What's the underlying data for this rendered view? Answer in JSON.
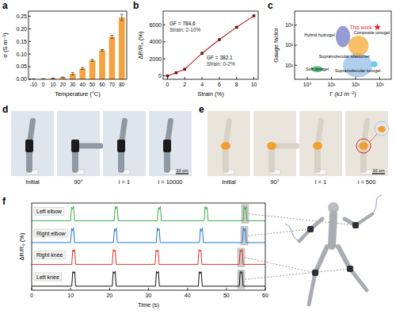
{
  "chart_data": [
    {
      "type": "bar",
      "title": "a",
      "x_label": "Temperature (°C)",
      "y_label": "σ (S m⁻¹)",
      "categories": [
        -10,
        0,
        10,
        20,
        30,
        40,
        50,
        60,
        70,
        80
      ],
      "values": [
        0.001,
        0.002,
        0.004,
        0.008,
        0.022,
        0.043,
        0.075,
        0.115,
        0.168,
        0.245
      ],
      "errors": [
        0.0005,
        0.0005,
        0.001,
        0.001,
        0.005,
        0.004,
        0.004,
        0.003,
        0.006,
        0.012
      ],
      "color": "#f3a440",
      "ylim": [
        0,
        0.27
      ],
      "yticks": [
        {
          "value": 0,
          "label": "0.00"
        },
        0.05,
        {
          "value": 0.1,
          "label": "0.10"
        },
        0.15,
        {
          "value": 0.2,
          "label": "0.20"
        },
        0.25
      ]
    },
    {
      "type": "line",
      "title": "b",
      "x_label": "Strain (%)",
      "y_label": "ΔR/R₀ (%)",
      "x": [
        0,
        1,
        2,
        4,
        6,
        8,
        10
      ],
      "values": [
        0,
        370,
        780,
        2650,
        4250,
        5700,
        7050
      ],
      "color": "#b22222",
      "marker": "square",
      "line_style": "solid",
      "xlim": [
        -0.5,
        10.5
      ],
      "xticks": [
        0,
        2,
        4,
        6,
        8,
        10
      ],
      "ylim": [
        -400,
        7600
      ],
      "yticks": [
        0,
        2000,
        4000,
        6000
      ],
      "annotations": [
        "GF = 382.1",
        "Strain: 0-2%",
        "GF = 784.6",
        "Strain: 2-10%"
      ]
    },
    {
      "type": "scatter",
      "title": "c",
      "x_label": "Γ (kJ m⁻²)",
      "y_label": "Gauge factor",
      "log": true,
      "xlim": [
        0.3,
        3000
      ],
      "xticks": [
        {
          "value": 1,
          "label": "10⁰"
        },
        {
          "value": 10,
          "label": "10¹"
        },
        {
          "value": 100,
          "label": "10²"
        },
        {
          "value": 1000,
          "label": "10³"
        }
      ],
      "ylim": [
        2,
        5000
      ],
      "yticks": [
        {
          "value": 10,
          "label": "10¹"
        },
        {
          "value": 100,
          "label": "10²"
        },
        {
          "value": 1000,
          "label": "10³"
        }
      ],
      "regions": [
        {
          "name": "Supramolecular ionogel",
          "color": "#9cc3ea",
          "x": [
            30,
            500
          ],
          "y": [
            2.5,
            40
          ]
        },
        {
          "name": "Composite ionogel",
          "color": "#f5b041",
          "x": [
            50,
            350
          ],
          "y": [
            30,
            300
          ]
        },
        {
          "name": "Hybrid hydrogel",
          "color": "#7b83c9",
          "x": [
            15,
            60
          ],
          "y": [
            80,
            900
          ]
        },
        {
          "name": "Soft ionogel",
          "color": "#27ae60",
          "x": [
            1.5,
            4.5
          ],
          "y": [
            4.5,
            9
          ]
        },
        {
          "name": "Supramolecular elastomer",
          "color": "#3fc1e0",
          "x": [
            450,
            800
          ],
          "y": [
            8,
            16
          ]
        }
      ],
      "series": [
        {
          "name": "This work",
          "color": "#e8202a",
          "marker": "star",
          "x": [
            800
          ],
          "values": [
            784.6
          ]
        }
      ]
    },
    {
      "type": "line",
      "title": "f",
      "x_label": "Time (s)",
      "y_label": "ΔR/R₀ (%)",
      "tick_labels": "x",
      "xlim": [
        0,
        60
      ],
      "xticks": [
        0,
        10,
        20,
        30,
        40,
        50,
        60
      ],
      "ylim": [
        -0.25,
        1.1
      ],
      "series": [
        {
          "name": "Left elbow",
          "color": "#3cb043",
          "highlight": [
            53.8,
            55.8
          ],
          "x": [
            0,
            10,
            10.25,
            10.5,
            10.75,
            11,
            21.2,
            21.45,
            21.7,
            21.95,
            22.2,
            32.3,
            32.55,
            32.8,
            33.05,
            33.3,
            44.3,
            44.55,
            44.8,
            45.05,
            45.3,
            54.3,
            54.55,
            54.8,
            55.05,
            55.3,
            60
          ],
          "values": [
            0,
            0,
            0.85,
            0.7,
            0.9,
            0,
            0,
            0.9,
            0.75,
            0.88,
            0,
            0,
            0.82,
            0.7,
            0.9,
            0,
            0,
            0.88,
            0.72,
            0.85,
            0,
            0,
            0.9,
            0.7,
            0.86,
            0,
            0
          ]
        },
        {
          "name": "Right elbow",
          "color": "#1f77d4",
          "highlight": [
            53.6,
            55.6
          ],
          "x": [
            0,
            10,
            10.25,
            10.5,
            10.75,
            11,
            21,
            21.25,
            21.5,
            21.75,
            22,
            32,
            32.25,
            32.5,
            32.75,
            33,
            43.1,
            43.35,
            43.6,
            43.85,
            44.1,
            54.1,
            54.35,
            54.6,
            54.85,
            55.1,
            60
          ],
          "values": [
            0,
            0,
            0.88,
            0.72,
            0.9,
            0,
            0,
            0.85,
            0.7,
            0.9,
            0,
            0,
            0.9,
            0.74,
            0.86,
            0,
            0,
            0.86,
            0.7,
            0.9,
            0,
            0,
            0.9,
            0.72,
            0.88,
            0,
            0
          ]
        },
        {
          "name": "Right knee",
          "color": "#e0322b",
          "highlight": [
            52.8,
            54.8
          ],
          "x": [
            0,
            10.3,
            10.55,
            10.8,
            11.05,
            11.3,
            20.7,
            20.95,
            21.2,
            21.45,
            21.7,
            31.7,
            31.95,
            32.2,
            32.45,
            32.7,
            42.7,
            42.95,
            43.2,
            43.45,
            43.7,
            53.3,
            53.55,
            53.8,
            54.05,
            54.3,
            60
          ],
          "values": [
            0,
            0,
            0.9,
            0.78,
            0.92,
            0,
            0,
            0.92,
            0.8,
            0.9,
            0,
            0,
            0.9,
            0.78,
            0.9,
            0,
            0,
            0.92,
            0.8,
            0.9,
            0,
            0,
            0.9,
            0.78,
            0.92,
            0,
            0
          ]
        },
        {
          "name": "Left knee",
          "color": "#111111",
          "highlight": [
            52.8,
            54.8
          ],
          "x": [
            0,
            10.3,
            10.55,
            10.8,
            11.05,
            11.3,
            20.7,
            20.95,
            21.2,
            21.45,
            21.7,
            31.8,
            32.05,
            32.3,
            32.55,
            32.8,
            42.8,
            43.05,
            43.3,
            43.55,
            43.8,
            53.3,
            53.55,
            53.8,
            54.05,
            54.3,
            60
          ],
          "values": [
            0,
            0,
            0.9,
            0.8,
            0.9,
            0,
            0,
            0.9,
            0.78,
            0.92,
            0,
            0,
            0.92,
            0.8,
            0.9,
            0,
            0,
            0.9,
            0.78,
            0.9,
            0,
            0,
            0.92,
            0.8,
            0.9,
            0,
            0
          ]
        }
      ]
    }
  ],
  "photos": [
    {
      "title": "d",
      "labels": [
        "Initial",
        "90°",
        "i = 1",
        "i = 10000"
      ],
      "scale_bar": "10 cm"
    },
    {
      "title": "e",
      "labels": [
        "Initial",
        "90°",
        "i = 1",
        "i = 500"
      ],
      "scale_bar": "10 cm"
    }
  ]
}
